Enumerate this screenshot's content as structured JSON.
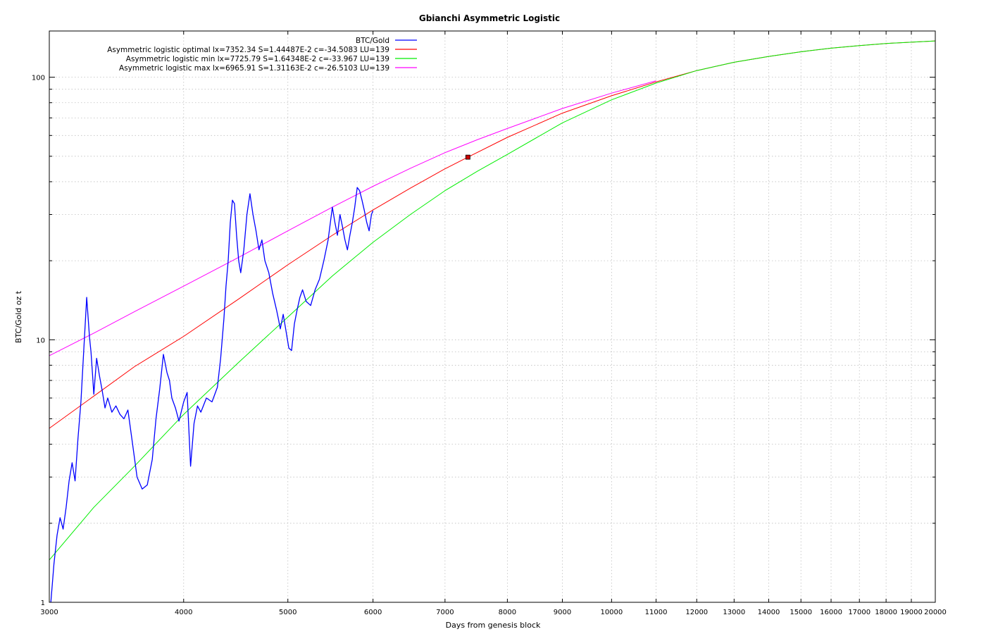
{
  "chart_data": {
    "type": "line",
    "title": "Gbianchi Asymmetric Logistic",
    "xlabel": "Days from genesis block",
    "ylabel": "BTC/Gold oz t",
    "x_scale": "log",
    "y_scale": "log",
    "xlim": [
      3000,
      20000
    ],
    "ylim": [
      1,
      150
    ],
    "grid": true,
    "legend_position": "top-left",
    "x_ticks": [
      3000,
      4000,
      5000,
      6000,
      7000,
      8000,
      9000,
      10000,
      11000,
      12000,
      13000,
      14000,
      15000,
      16000,
      17000,
      18000,
      19000,
      20000
    ],
    "x_tick_labels": [
      "3000",
      "4000",
      "5000",
      "6000",
      "7000",
      "8000",
      "9000",
      "10000",
      "11000",
      "12000",
      "13000",
      "14000",
      "15000",
      "16000",
      "17000",
      "18000",
      "19000",
      "20000"
    ],
    "y_ticks": [
      1,
      10,
      100
    ],
    "y_tick_labels": [
      "1",
      "10",
      "100"
    ],
    "series": [
      {
        "name": "BTC/Gold",
        "color": "#0000ff",
        "kind": "data",
        "x": [
          3010,
          3030,
          3050,
          3070,
          3090,
          3110,
          3130,
          3150,
          3170,
          3190,
          3210,
          3230,
          3250,
          3270,
          3280,
          3290,
          3300,
          3320,
          3340,
          3360,
          3380,
          3400,
          3430,
          3460,
          3490,
          3520,
          3550,
          3580,
          3620,
          3660,
          3700,
          3740,
          3770,
          3800,
          3830,
          3860,
          3880,
          3900,
          3930,
          3960,
          4000,
          4030,
          4060,
          4090,
          4120,
          4150,
          4200,
          4250,
          4300,
          4330,
          4360,
          4380,
          4400,
          4420,
          4440,
          4460,
          4480,
          4500,
          4520,
          4550,
          4580,
          4610,
          4640,
          4670,
          4700,
          4730,
          4760,
          4800,
          4840,
          4880,
          4900,
          4920,
          4950,
          4980,
          5010,
          5040,
          5070,
          5100,
          5130,
          5160,
          5200,
          5250,
          5300,
          5350,
          5400,
          5450,
          5500,
          5530,
          5560,
          5590,
          5620,
          5650,
          5680,
          5710,
          5740,
          5770,
          5800,
          5830,
          5860,
          5890,
          5920,
          5950,
          5980,
          6000
        ],
        "y": [
          1.0,
          1.4,
          1.8,
          2.1,
          1.9,
          2.3,
          2.9,
          3.4,
          2.9,
          4.2,
          5.8,
          9.2,
          14.5,
          10.2,
          9.0,
          7.5,
          6.2,
          8.5,
          7.3,
          6.4,
          5.5,
          6.0,
          5.3,
          5.6,
          5.2,
          5.0,
          5.4,
          4.2,
          3.0,
          2.7,
          2.8,
          3.5,
          5.0,
          6.5,
          8.8,
          7.5,
          7.0,
          6.0,
          5.5,
          4.9,
          5.8,
          6.3,
          3.3,
          4.8,
          5.6,
          5.3,
          6.0,
          5.8,
          6.6,
          8.5,
          12.0,
          16.0,
          20.0,
          28.0,
          34.0,
          33.0,
          25.0,
          20.0,
          18.0,
          22.0,
          30.0,
          36.0,
          30.0,
          26.0,
          22.0,
          24.0,
          20.0,
          18.0,
          15.0,
          13.0,
          12.0,
          11.0,
          12.5,
          10.8,
          9.3,
          9.1,
          11.5,
          13.0,
          14.5,
          15.5,
          14.0,
          13.5,
          15.5,
          17.0,
          20.0,
          24.0,
          32.0,
          28.0,
          25.0,
          30.0,
          27.0,
          24.0,
          22.0,
          25.0,
          28.0,
          32.0,
          38.0,
          37.0,
          34.0,
          31.0,
          28.0,
          26.0,
          30.0,
          31.0
        ]
      },
      {
        "name": "Asymmetric logistic optimal lx=7352.34 S=1.44487E-2 c=-34.5083 LU=139",
        "color": "#ff0000",
        "kind": "model",
        "x": [
          3000,
          3300,
          3600,
          4000,
          4500,
          5000,
          5500,
          6000,
          6500,
          7000,
          7352,
          8000,
          9000,
          10000,
          11000,
          12000,
          13000,
          14000,
          15000,
          16000,
          17000,
          18000,
          19000,
          20000
        ],
        "y": [
          4.6,
          6.1,
          7.9,
          10.3,
          14.3,
          19.3,
          25.0,
          31.2,
          37.8,
          44.8,
          49.6,
          59.0,
          73.0,
          85.0,
          96.0,
          106.0,
          114.0,
          120.0,
          125.0,
          129.0,
          132.0,
          134.5,
          136.0,
          137.5
        ]
      },
      {
        "name": "Asymmetric logistic min lx=7725.79 S=1.64348E-2 c=-33.967 LU=139",
        "color": "#00ee00",
        "kind": "model",
        "x": [
          3000,
          3300,
          3600,
          4000,
          4500,
          5000,
          5500,
          6000,
          6500,
          7000,
          7500,
          8000,
          9000,
          10000,
          11000,
          12000,
          13000,
          14000,
          15000,
          16000,
          17000,
          18000,
          19000,
          20000
        ],
        "y": [
          1.45,
          2.3,
          3.3,
          5.2,
          8.2,
          12.2,
          17.5,
          23.5,
          30.0,
          37.0,
          43.8,
          50.8,
          67.0,
          82.0,
          95.0,
          106.0,
          114.0,
          120.0,
          125.0,
          129.0,
          132.0,
          134.5,
          136.0,
          137.5
        ]
      },
      {
        "name": "Asymmetric logistic max lx=6965.91 S=1.31163E-2 c=-26.5103 LU=139",
        "color": "#ff00ff",
        "kind": "model",
        "x": [
          3000,
          3300,
          3600,
          4000,
          4500,
          5000,
          5500,
          6000,
          6500,
          7000,
          7500,
          8000,
          9000,
          10000,
          11000
        ],
        "y": [
          8.7,
          10.6,
          12.8,
          16.0,
          20.6,
          26.0,
          32.0,
          38.4,
          45.0,
          51.6,
          57.8,
          63.8,
          76.0,
          87.0,
          97.0
        ]
      }
    ],
    "annotations": [
      {
        "type": "marker",
        "x": 7352,
        "y": 49.6,
        "color": "#cc0000"
      }
    ]
  }
}
